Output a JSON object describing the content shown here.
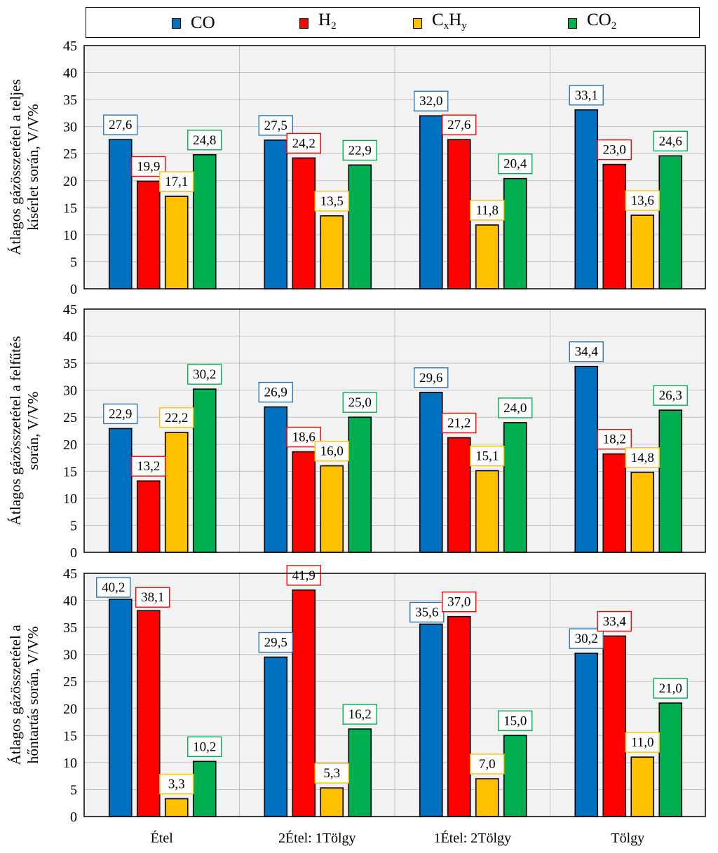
{
  "legend": [
    {
      "key": "co",
      "parts": [
        {
          "t": "CO",
          "sub": false
        }
      ],
      "color": "#0070C0",
      "label_color": "#2E75B6"
    },
    {
      "key": "h2",
      "parts": [
        {
          "t": "H",
          "sub": false
        },
        {
          "t": "2",
          "sub": true
        }
      ],
      "color": "#FF0000",
      "label_color": "#FF0000"
    },
    {
      "key": "cxhy",
      "parts": [
        {
          "t": "C",
          "sub": false
        },
        {
          "t": "x",
          "sub": true
        },
        {
          "t": "H",
          "sub": false
        },
        {
          "t": "y",
          "sub": true
        }
      ],
      "color": "#FFC000",
      "label_color": "#FFC000"
    },
    {
      "key": "co2",
      "parts": [
        {
          "t": "CO",
          "sub": false
        },
        {
          "t": "2",
          "sub": true
        }
      ],
      "color": "#00B050",
      "label_color": "#00B050"
    }
  ],
  "chart_data": [
    {
      "type": "bar",
      "ylabel": [
        "Átlagos gázösszetétel a teljes",
        "kísérlet során, V/V%"
      ],
      "categories": [
        "Étel",
        "2Étel: 1Tölgy",
        "1Étel: 2Tölgy",
        "Tölgy"
      ],
      "ylim": [
        0,
        45
      ],
      "yticks": [
        0,
        5,
        10,
        15,
        20,
        25,
        30,
        35,
        40,
        45
      ],
      "series": [
        {
          "name": "CO",
          "values": [
            27.6,
            27.5,
            32.0,
            33.1
          ],
          "labels": [
            "27,6",
            "27,5",
            "32,0",
            "33,1"
          ]
        },
        {
          "name": "H2",
          "values": [
            19.9,
            24.2,
            27.6,
            23.0
          ],
          "labels": [
            "19,9",
            "24,2",
            "27,6",
            "23,0"
          ]
        },
        {
          "name": "CxHy",
          "values": [
            17.1,
            13.5,
            11.8,
            13.6
          ],
          "labels": [
            "17,1",
            "13,5",
            "11,8",
            "13,6"
          ]
        },
        {
          "name": "CO2",
          "values": [
            24.8,
            22.9,
            20.4,
            24.6
          ],
          "labels": [
            "24,8",
            "22,9",
            "20,4",
            "24,6"
          ]
        }
      ]
    },
    {
      "type": "bar",
      "ylabel": [
        "Átlagos gázösszetétel a felfűtés",
        "során, V/V%"
      ],
      "categories": [
        "Étel",
        "2Étel: 1Tölgy",
        "1Étel: 2Tölgy",
        "Tölgy"
      ],
      "ylim": [
        0,
        45
      ],
      "yticks": [
        0,
        5,
        10,
        15,
        20,
        25,
        30,
        35,
        40,
        45
      ],
      "series": [
        {
          "name": "CO",
          "values": [
            22.9,
            26.9,
            29.6,
            34.4
          ],
          "labels": [
            "22,9",
            "26,9",
            "29,6",
            "34,4"
          ]
        },
        {
          "name": "H2",
          "values": [
            13.2,
            18.6,
            21.2,
            18.2
          ],
          "labels": [
            "13,2",
            "18,6",
            "21,2",
            "18,2"
          ]
        },
        {
          "name": "CxHy",
          "values": [
            22.2,
            16.0,
            15.1,
            14.8
          ],
          "labels": [
            "22,2",
            "16,0",
            "15,1",
            "14,8"
          ]
        },
        {
          "name": "CO2",
          "values": [
            30.2,
            25.0,
            24.0,
            26.3
          ],
          "labels": [
            "30,2",
            "25,0",
            "24,0",
            "26,3"
          ]
        }
      ]
    },
    {
      "type": "bar",
      "ylabel": [
        "Átlagos gázösszetétel a",
        "hőntartás során, V/V%"
      ],
      "categories": [
        "Étel",
        "2Étel: 1Tölgy",
        "1Étel: 2Tölgy",
        "Tölgy"
      ],
      "ylim": [
        0,
        45
      ],
      "yticks": [
        0,
        5,
        10,
        15,
        20,
        25,
        30,
        35,
        40,
        45
      ],
      "series": [
        {
          "name": "CO",
          "values": [
            40.2,
            29.5,
            35.6,
            30.2
          ],
          "labels": [
            "40,2",
            "29,5",
            "35,6",
            "30,2"
          ]
        },
        {
          "name": "H2",
          "values": [
            38.1,
            41.9,
            37.0,
            33.4
          ],
          "labels": [
            "38,1",
            "41,9",
            "37,0",
            "33,4"
          ]
        },
        {
          "name": "CxHy",
          "values": [
            3.3,
            5.3,
            7.0,
            11.0
          ],
          "labels": [
            "3,3",
            "5,3",
            "7,0",
            "11,0"
          ]
        },
        {
          "name": "CO2",
          "values": [
            10.2,
            16.2,
            15.0,
            21.0
          ],
          "labels": [
            "10,2",
            "16,2",
            "15,0",
            "21,0"
          ]
        }
      ]
    }
  ],
  "colors": {
    "series": [
      "#0070C0",
      "#FF0000",
      "#FFC000",
      "#00B050"
    ],
    "label_borders": [
      "#2E75B6",
      "#FF0000",
      "#FFC000",
      "#00B050"
    ],
    "plot_bg": "#F2F2F2",
    "grid": "#BFBFBF"
  }
}
